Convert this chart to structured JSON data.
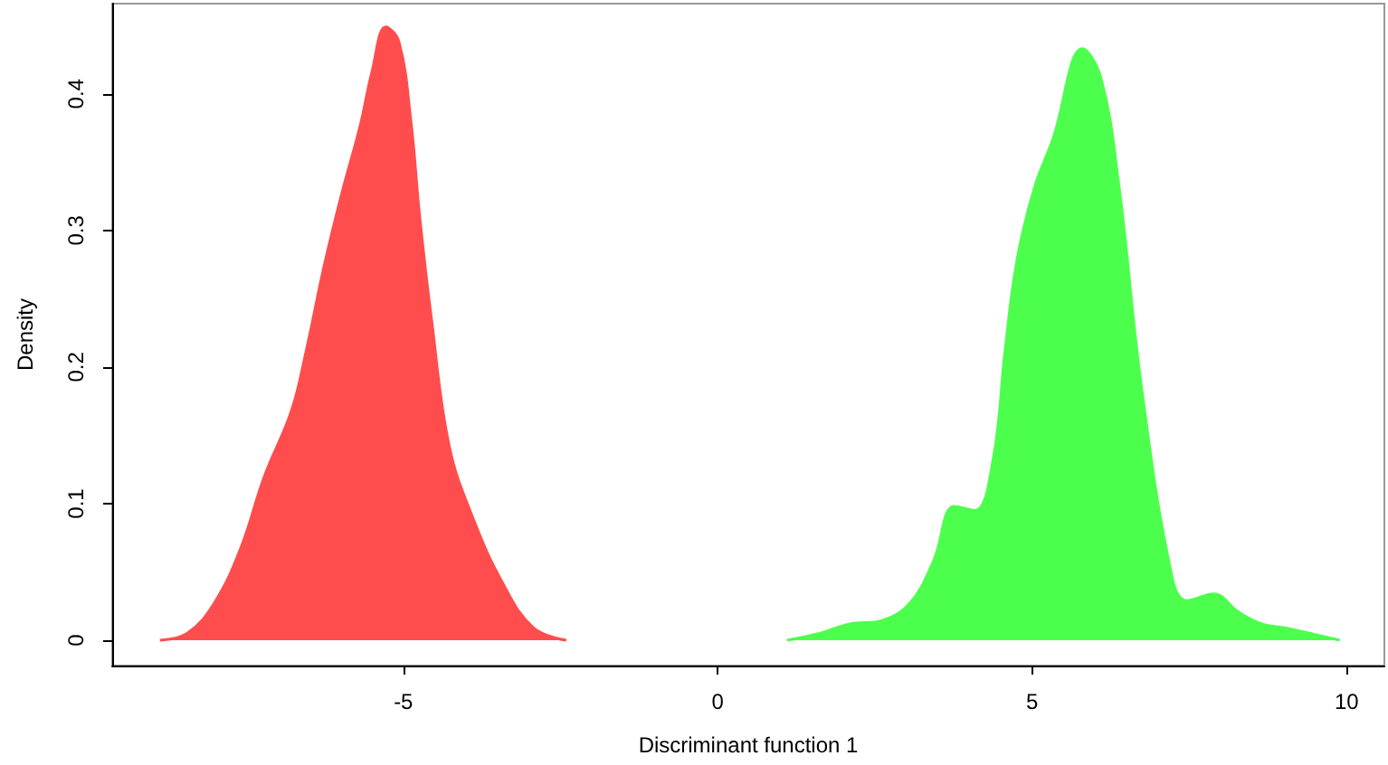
{
  "chart_data": {
    "type": "area",
    "xlabel": "Discriminant function 1",
    "ylabel": "Density",
    "xlim": [
      -9.63,
      10.6
    ],
    "ylim": [
      -0.0185,
      0.466
    ],
    "xticks": [
      -5,
      0,
      5,
      10
    ],
    "yticks": [
      0,
      0.1,
      0.2,
      0.3,
      0.4
    ],
    "grid": false,
    "marker": "none",
    "series": [
      {
        "color": "#ff4d4d",
        "x": [
          -8.87,
          -8.44,
          -8.01,
          -7.59,
          -7.21,
          -6.78,
          -6.54,
          -6.26,
          -5.98,
          -5.69,
          -5.5,
          -5.28,
          -5.07,
          -4.88,
          -4.74,
          -4.55,
          -4.27,
          -3.89,
          -3.41,
          -2.93,
          -2.41
        ],
        "values": [
          0,
          0.005,
          0.027,
          0.067,
          0.12,
          0.168,
          0.213,
          0.274,
          0.327,
          0.376,
          0.416,
          0.449,
          0.438,
          0.38,
          0.31,
          0.234,
          0.142,
          0.089,
          0.041,
          0.009,
          0
        ]
      },
      {
        "color": "#4dff4d",
        "x": [
          1.1,
          1.62,
          2.1,
          2.57,
          3.05,
          3.43,
          3.76,
          4.09,
          4.38,
          4.57,
          4.76,
          5.04,
          5.33,
          5.8,
          6.09,
          6.37,
          6.75,
          7.23,
          7.46,
          7.89,
          8.27,
          8.65,
          9.03,
          9.89
        ],
        "values": [
          0,
          0.005,
          0.012,
          0.014,
          0.027,
          0.058,
          0.098,
          0.095,
          0.133,
          0.213,
          0.279,
          0.332,
          0.367,
          0.433,
          0.412,
          0.336,
          0.181,
          0.045,
          0.029,
          0.034,
          0.021,
          0.012,
          0.009,
          0
        ]
      }
    ]
  }
}
